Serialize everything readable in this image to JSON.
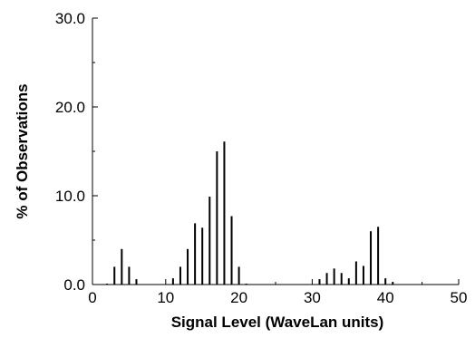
{
  "chart_data": {
    "type": "bar",
    "title": "",
    "xlabel": "Signal Level (WaveLan units)",
    "ylabel": "% of Observations",
    "xlim": [
      0,
      50
    ],
    "ylim": [
      0,
      30
    ],
    "x_ticks": [
      "0",
      "10",
      "20",
      "30",
      "40",
      "50"
    ],
    "y_ticks": [
      "0.0",
      "10.0",
      "20.0",
      "30.0"
    ],
    "grid": false,
    "legend": "none",
    "bar_color": "#000000",
    "x": [
      2,
      3,
      4,
      5,
      6,
      11,
      12,
      13,
      14,
      15,
      16,
      17,
      18,
      19,
      20,
      21,
      31,
      32,
      33,
      34,
      35,
      36,
      37,
      38,
      39,
      40,
      41
    ],
    "values": [
      0.1,
      2.0,
      4.0,
      2.0,
      0.6,
      0.7,
      2.0,
      4.0,
      6.9,
      6.4,
      9.9,
      15.0,
      16.1,
      7.7,
      2.0,
      0.1,
      0.6,
      1.3,
      1.8,
      1.3,
      0.7,
      2.6,
      2.1,
      6.0,
      6.5,
      0.7,
      0.3
    ]
  }
}
